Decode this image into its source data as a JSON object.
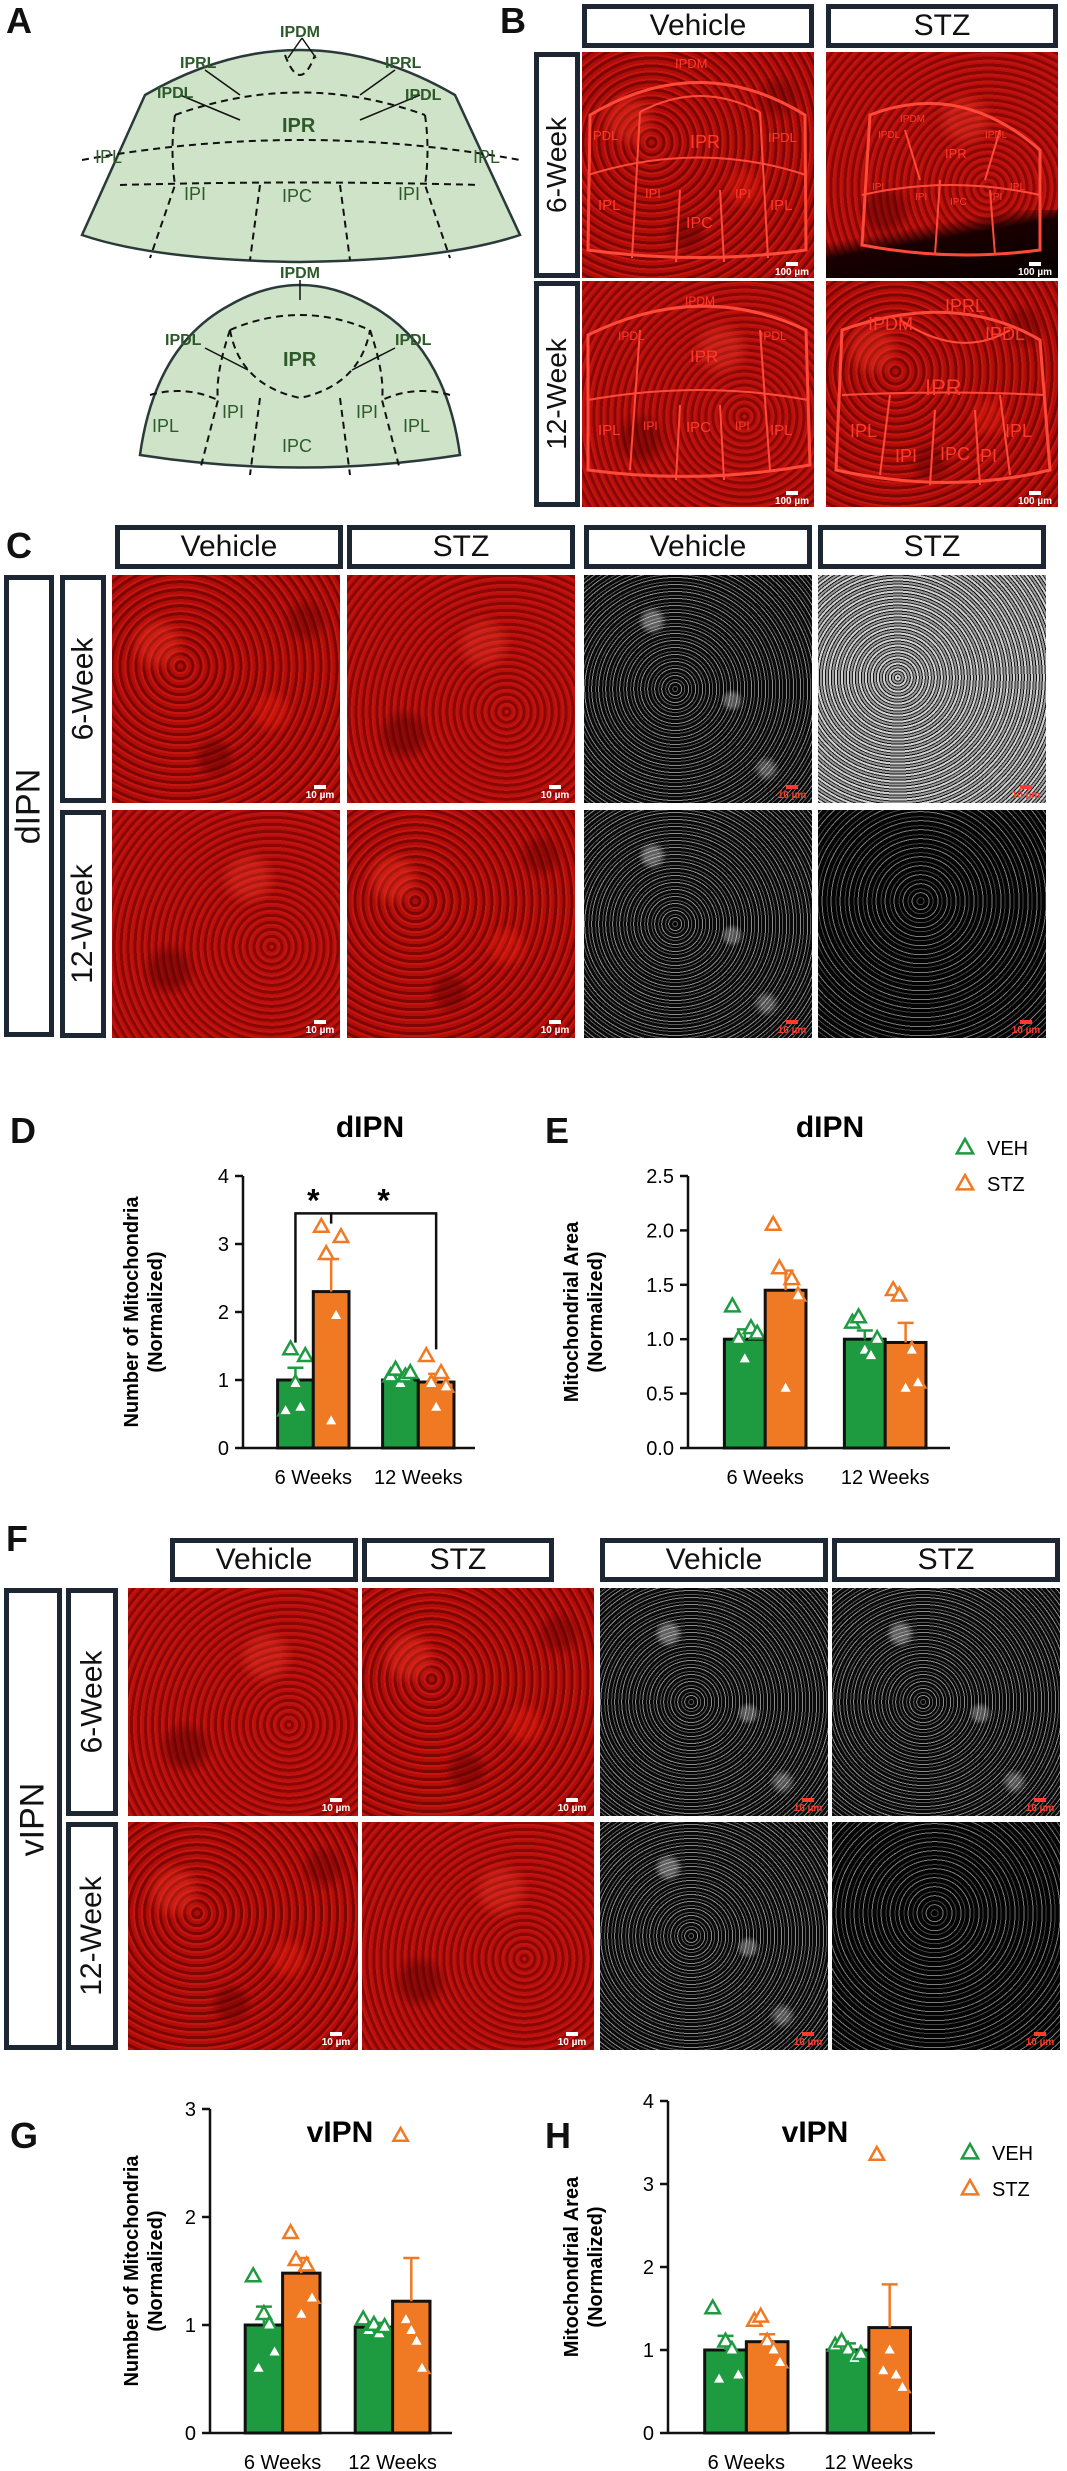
{
  "colors": {
    "veh": "#1e9a41",
    "stz": "#f07a24",
    "veh_marker": "#1e9a41",
    "stz_marker": "#f07a24",
    "schematic_fill": "#cfe3c8",
    "schematic_text": "#2d5a2a"
  },
  "panels": {
    "A": {
      "letter": "A",
      "top": {
        "labels": [
          "IPDM",
          "IPRL",
          "IPRL",
          "IPDL",
          "IPDL",
          "IPR",
          "IPL",
          "IPL",
          "IPI",
          "IPI",
          "IPC"
        ]
      },
      "bottom": {
        "labels": [
          "IPDM",
          "IPDL",
          "IPDL",
          "IPR",
          "IPL",
          "IPL",
          "IPI",
          "IPI",
          "IPC"
        ]
      }
    },
    "B": {
      "letter": "B",
      "cols": [
        "Vehicle",
        "STZ"
      ],
      "rows": [
        "6-Week",
        "12-Week"
      ],
      "scale": "100 µm",
      "images": [
        {
          "labels": [
            "IPDM",
            "PDL",
            "IPR",
            "IPDL",
            "IPL",
            "IPI",
            "IPC",
            "IPI",
            "IPL"
          ]
        },
        {
          "labels": [
            "IPDM",
            "IPDL",
            "IPDL",
            "IPR",
            "IPL",
            "IPL",
            "IPI",
            "IPC",
            "IPI"
          ]
        },
        {
          "labels": [
            "IPDM",
            "IPDL",
            "IPDL",
            "IPR",
            "IPL",
            "IPI",
            "IPC",
            "IPI",
            "IPL"
          ]
        },
        {
          "labels": [
            "IPDM",
            "IPRL",
            "IPDL",
            "IPR",
            "IPL",
            "IPL",
            "IPI",
            "IPC",
            "IPI"
          ]
        }
      ]
    },
    "C": {
      "letter": "C",
      "region": "dIPN",
      "cols": [
        "Vehicle",
        "STZ",
        "Vehicle",
        "STZ"
      ],
      "rows": [
        "6-Week",
        "12-Week"
      ],
      "scale": "10 µm"
    },
    "F": {
      "letter": "F",
      "region": "vIPN",
      "cols": [
        "Vehicle",
        "STZ",
        "Vehicle",
        "STZ"
      ],
      "rows": [
        "6-Week",
        "12-Week"
      ],
      "scale": "10 µm"
    },
    "D": {
      "letter": "D"
    },
    "E": {
      "letter": "E"
    },
    "G": {
      "letter": "G"
    },
    "H": {
      "letter": "H"
    }
  },
  "chart_data": [
    {
      "id": "D",
      "type": "bar",
      "title": "dIPN",
      "ylabel": "Number of Mitochondria (Normalized)",
      "categories": [
        "6 Weeks",
        "12 Weeks"
      ],
      "ylim": [
        0,
        4
      ],
      "yticks": [
        0,
        1,
        2,
        3,
        4
      ],
      "series": [
        {
          "name": "VEH",
          "values": [
            1.0,
            1.0
          ],
          "sem": [
            0.18,
            0.07
          ],
          "points": [
            [
              0.55,
              1.45,
              0.95,
              0.6,
              1.35
            ],
            [
              1.05,
              1.15,
              0.95,
              1.05,
              1.1
            ]
          ]
        },
        {
          "name": "STZ",
          "values": [
            2.3,
            0.97
          ],
          "sem": [
            0.48,
            0.12
          ],
          "points": [
            [
              3.25,
              2.85,
              0.4,
              1.95,
              3.1
            ],
            [
              1.35,
              0.95,
              0.6,
              1.1,
              0.9
            ]
          ]
        }
      ],
      "annotations": [
        "*",
        "*"
      ]
    },
    {
      "id": "E",
      "type": "bar",
      "title": "dIPN",
      "ylabel": "Mitochondrial Area (Normalized)",
      "categories": [
        "6 Weeks",
        "12 Weeks"
      ],
      "ylim": [
        0,
        2.5
      ],
      "yticks": [
        "0.0",
        "0.5",
        "1.0",
        "1.5",
        "2.0",
        "2.5"
      ],
      "legend": [
        "VEH",
        "STZ"
      ],
      "series": [
        {
          "name": "VEH",
          "values": [
            1.0,
            1.0
          ],
          "sem": [
            0.09,
            0.08
          ],
          "points": [
            [
              1.3,
              1.0,
              0.82,
              1.1,
              1.05
            ],
            [
              1.15,
              1.2,
              0.9,
              0.85,
              1.0
            ]
          ]
        },
        {
          "name": "STZ",
          "values": [
            1.45,
            0.97
          ],
          "sem": [
            0.18,
            0.18
          ],
          "points": [
            [
              2.05,
              1.65,
              0.55,
              1.55,
              1.4
            ],
            [
              1.45,
              1.4,
              0.55,
              0.9,
              0.6
            ]
          ]
        }
      ]
    },
    {
      "id": "G",
      "type": "bar",
      "title": "vIPN",
      "ylabel": "Number of Mitochondria (Normalized)",
      "categories": [
        "6 Weeks",
        "12 Weeks"
      ],
      "ylim": [
        0,
        3
      ],
      "yticks": [
        0,
        1,
        2,
        3
      ],
      "series": [
        {
          "name": "VEH",
          "values": [
            1.0,
            0.98
          ],
          "sem": [
            0.17,
            0.04
          ],
          "points": [
            [
              1.45,
              0.6,
              1.1,
              1.0,
              0.75
            ],
            [
              1.05,
              0.95,
              1.0,
              0.92,
              0.98
            ]
          ]
        },
        {
          "name": "STZ",
          "values": [
            1.48,
            1.22
          ],
          "sem": [
            0.14,
            0.4
          ],
          "points": [
            [
              1.85,
              1.6,
              1.1,
              1.55,
              1.25
            ],
            [
              2.75,
              1.05,
              0.95,
              0.85,
              0.6
            ]
          ]
        }
      ]
    },
    {
      "id": "H",
      "type": "bar",
      "title": "vIPN",
      "ylabel": "Mitochondrial Area (Normalized)",
      "categories": [
        "6 Weeks",
        "12 Weeks"
      ],
      "ylim": [
        0,
        4
      ],
      "yticks": [
        0,
        1,
        2,
        3,
        4
      ],
      "legend": [
        "VEH",
        "STZ"
      ],
      "series": [
        {
          "name": "VEH",
          "values": [
            1.0,
            1.0
          ],
          "sem": [
            0.17,
            0.08
          ],
          "points": [
            [
              1.5,
              0.65,
              1.1,
              1.0,
              0.7
            ],
            [
              1.05,
              1.1,
              1.0,
              0.9,
              0.95
            ]
          ]
        },
        {
          "name": "STZ",
          "values": [
            1.1,
            1.27
          ],
          "sem": [
            0.09,
            0.52
          ],
          "points": [
            [
              1.35,
              1.4,
              1.1,
              1.0,
              0.85
            ],
            [
              3.35,
              0.75,
              1.0,
              0.7,
              0.55
            ]
          ]
        }
      ]
    }
  ]
}
